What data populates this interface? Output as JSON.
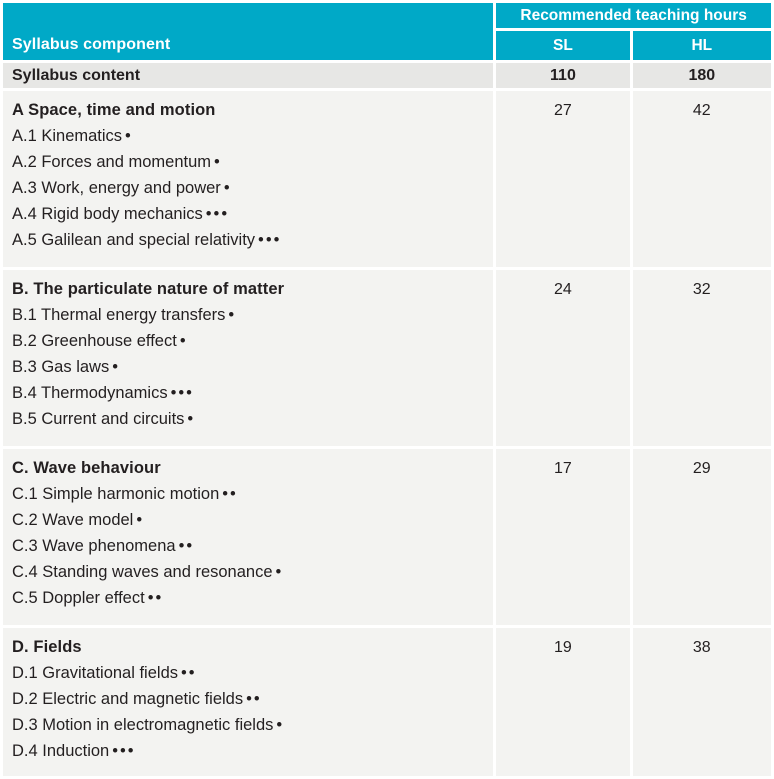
{
  "colors": {
    "teal": "#00a9c7",
    "summary_row_bg": "#e7e7e5",
    "body_row_bg": "#f3f3f1",
    "text": "#231f20"
  },
  "table": {
    "header": {
      "syllabus_component": "Syllabus component",
      "recommended_hours": "Recommended teaching hours",
      "sl": "SL",
      "hl": "HL"
    },
    "summary_row": {
      "label": "Syllabus content",
      "sl": "110",
      "hl": "180"
    },
    "sections": [
      {
        "title": "A Space, time and motion",
        "sl": "27",
        "hl": "42",
        "topics": [
          {
            "label": "A.1 Kinematics",
            "dots": "•"
          },
          {
            "label": "A.2 Forces and momentum",
            "dots": "•"
          },
          {
            "label": "A.3 Work, energy and power",
            "dots": "•"
          },
          {
            "label": "A.4 Rigid body mechanics",
            "dots": "•••"
          },
          {
            "label": "A.5 Galilean and special relativity",
            "dots": "•••"
          }
        ]
      },
      {
        "title": "B. The particulate nature of matter",
        "sl": "24",
        "hl": "32",
        "topics": [
          {
            "label": "B.1 Thermal energy transfers",
            "dots": "•"
          },
          {
            "label": "B.2 Greenhouse effect",
            "dots": "•"
          },
          {
            "label": "B.3 Gas laws",
            "dots": "•"
          },
          {
            "label": "B.4 Thermodynamics",
            "dots": "•••"
          },
          {
            "label": "B.5 Current and circuits",
            "dots": "•"
          }
        ]
      },
      {
        "title": "C. Wave behaviour",
        "sl": "17",
        "hl": "29",
        "topics": [
          {
            "label": "C.1 Simple harmonic motion",
            "dots": "••"
          },
          {
            "label": "C.2 Wave model",
            "dots": "•"
          },
          {
            "label": "C.3 Wave phenomena",
            "dots": "••"
          },
          {
            "label": "C.4 Standing waves and resonance",
            "dots": "•"
          },
          {
            "label": "C.5 Doppler effect",
            "dots": "••"
          }
        ]
      },
      {
        "title": "D. Fields",
        "sl": "19",
        "hl": "38",
        "topics": [
          {
            "label": "D.1 Gravitational fields",
            "dots": "••"
          },
          {
            "label": "D.2 Electric and magnetic fields",
            "dots": "••"
          },
          {
            "label": "D.3 Motion in electromagnetic fields",
            "dots": "•"
          },
          {
            "label": "D.4 Induction",
            "dots": "•••"
          }
        ]
      }
    ]
  }
}
